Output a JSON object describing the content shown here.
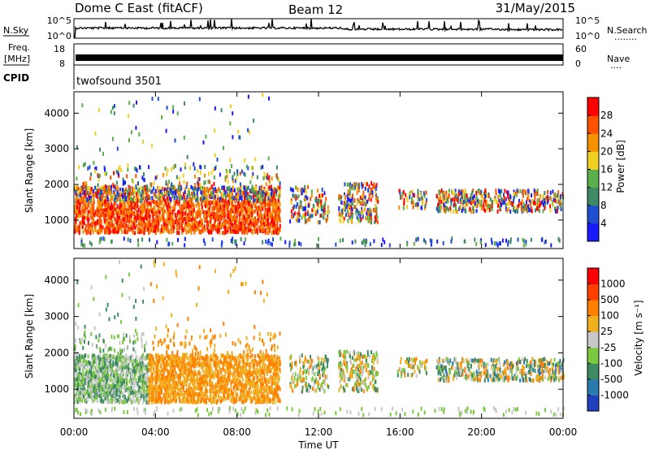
{
  "header": {
    "station": "Dome C East (fitACF)",
    "beam": "Beam 12",
    "date": "31/May/2015"
  },
  "panels": {
    "nsky": {
      "left_label": "N.Sky",
      "right_label": "N.Search",
      "left_ticks": [
        "10^5",
        "10^0"
      ],
      "right_ticks": [
        "10^5",
        "10^0"
      ],
      "right_marker": "........"
    },
    "freq": {
      "left_label_1": "Freq.",
      "left_label_2": "[MHz]",
      "right_label": "Nave",
      "left_ticks": [
        "18",
        "8"
      ],
      "right_ticks": [
        "60",
        "0"
      ],
      "right_marker": "...."
    },
    "cpid": {
      "label": "CPID",
      "program": "twofsound 3501"
    }
  },
  "chart_data": [
    {
      "type": "heatmap",
      "name": "power",
      "ylabel": "Slant Range [km]",
      "xlabel": "",
      "y_ticks": [
        1000,
        2000,
        3000,
        4000
      ],
      "ylim": [
        200,
        4600
      ],
      "colorbar_label": "Power [dB]",
      "colorbar_ticks": [
        "4",
        "8",
        "12",
        "16",
        "20",
        "24",
        "28"
      ],
      "colorbar_colors": [
        "#1a1aff",
        "#1f4fd0",
        "#3d8a63",
        "#5ab04a",
        "#f0d020",
        "#f59000",
        "#ff5200",
        "#ff0000"
      ]
    },
    {
      "type": "heatmap",
      "name": "velocity",
      "ylabel": "Slant Range [km]",
      "xlabel": "Time UT",
      "x_ticks": [
        "00:00",
        "04:00",
        "08:00",
        "12:00",
        "16:00",
        "20:00",
        "00:00"
      ],
      "y_ticks": [
        1000,
        2000,
        3000,
        4000
      ],
      "ylim": [
        200,
        4600
      ],
      "colorbar_label": "Velocity [m s⁻¹]",
      "colorbar_ticks": [
        "1000",
        "500",
        "100",
        "25",
        "-25",
        "-100",
        "-500",
        "-1000"
      ],
      "colorbar_colors": [
        "#2040c0",
        "#2a7ab0",
        "#3d8a63",
        "#7cc840",
        "#c8c8c8",
        "#f0b020",
        "#ff8000",
        "#ff4000",
        "#ff0000"
      ]
    }
  ]
}
